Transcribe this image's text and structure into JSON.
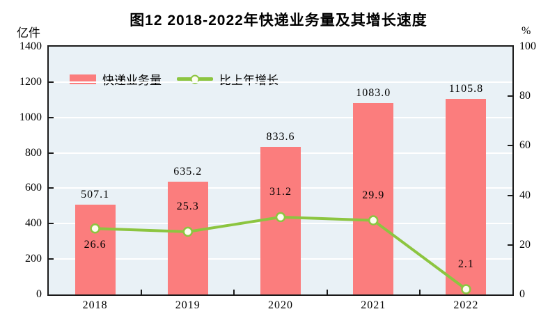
{
  "title": "图12  2018-2022年快递业务量及其增长速度",
  "colors": {
    "bar": "#fb7d7d",
    "line": "#8cc540",
    "marker_fill": "#fcfdee",
    "plot_bg": "#e9f1f6",
    "grid": "#ffffff",
    "axis": "#1a1a1a",
    "text": "#000000"
  },
  "chart_data": {
    "type": "bar+line",
    "title": "图12  2018-2022年快递业务量及其增长速度",
    "categories": [
      "2018",
      "2019",
      "2020",
      "2021",
      "2022"
    ],
    "series": [
      {
        "name": "快递业务量",
        "type": "bar",
        "axis": "left",
        "color": "#fb7d7d",
        "values": [
          507.1,
          635.2,
          833.6,
          1083.0,
          1105.8
        ],
        "labels": [
          "507.1",
          "635.2",
          "833.6",
          "1083.0",
          "1105.8"
        ]
      },
      {
        "name": "比上年增长",
        "type": "line",
        "axis": "right",
        "color": "#8cc540",
        "values": [
          26.6,
          25.3,
          31.2,
          29.9,
          2.1
        ],
        "labels": [
          "26.6",
          "25.3",
          "31.2",
          "29.9",
          "2.1"
        ],
        "label_pos": [
          "below",
          "above",
          "above",
          "above",
          "above"
        ]
      }
    ],
    "left_axis": {
      "label": "亿件",
      "min": 0,
      "max": 1400,
      "step": 200,
      "tick_labels": [
        "1400",
        "1200",
        "1000",
        "800",
        "600",
        "400",
        "200",
        "0"
      ]
    },
    "right_axis": {
      "label": "%",
      "min": 0,
      "max": 100,
      "step": 20,
      "tick_labels": [
        "100",
        "80",
        "60",
        "40",
        "20",
        "0"
      ]
    },
    "legend_position": "top-left-inside",
    "grid": true
  }
}
